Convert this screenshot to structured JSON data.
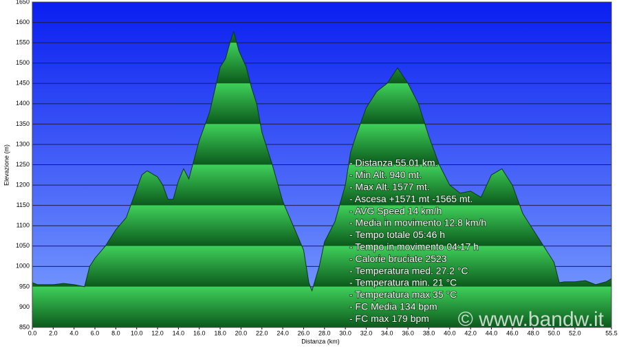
{
  "chart_data": {
    "type": "area",
    "xlabel": "Distanza  (km)",
    "ylabel": "Elevazione (m)",
    "x": [
      0,
      0.5,
      1,
      2,
      3,
      4,
      5,
      5.5,
      6,
      7,
      8,
      9,
      10,
      10.5,
      11,
      12,
      12.5,
      13,
      13.5,
      14,
      14.5,
      15,
      16,
      17,
      18,
      18.5,
      19,
      19.3,
      19.8,
      20.5,
      21,
      21.5,
      22,
      23,
      24,
      25,
      26,
      26.5,
      26.8,
      27.5,
      28,
      29,
      30,
      30.5,
      31,
      32,
      33,
      34,
      35,
      36,
      37,
      38,
      39,
      40,
      41,
      42,
      43,
      44,
      45,
      46,
      47,
      48,
      49,
      50,
      50.5,
      51,
      52,
      53,
      54,
      55,
      55.5
    ],
    "values": [
      960,
      955,
      955,
      955,
      958,
      955,
      950,
      1000,
      1020,
      1050,
      1090,
      1120,
      1190,
      1225,
      1235,
      1220,
      1200,
      1165,
      1165,
      1210,
      1240,
      1215,
      1310,
      1380,
      1490,
      1510,
      1555,
      1577,
      1530,
      1490,
      1440,
      1400,
      1330,
      1250,
      1160,
      1100,
      1040,
      960,
      940,
      1000,
      1060,
      1110,
      1200,
      1280,
      1320,
      1390,
      1430,
      1450,
      1488,
      1450,
      1400,
      1320,
      1250,
      1200,
      1180,
      1185,
      1170,
      1225,
      1240,
      1200,
      1130,
      1090,
      1050,
      1010,
      960,
      962,
      962,
      965,
      955,
      962,
      970
    ],
    "color": "#1aa83a",
    "xlim": [
      0,
      55.5
    ],
    "ylim": [
      850,
      1650
    ],
    "xticks": [
      {
        "value": 0,
        "label": "0.0"
      },
      {
        "value": 2,
        "label": "2.0"
      },
      {
        "value": 4,
        "label": "4.0"
      },
      {
        "value": 6,
        "label": "6.0"
      },
      {
        "value": 8,
        "label": "8.0"
      },
      {
        "value": 10,
        "label": "10.0"
      },
      {
        "value": 12,
        "label": "12.0"
      },
      {
        "value": 14,
        "label": "14.0"
      },
      {
        "value": 16,
        "label": "16.0"
      },
      {
        "value": 18,
        "label": "18.0"
      },
      {
        "value": 20,
        "label": "20.0"
      },
      {
        "value": 22,
        "label": "22.0"
      },
      {
        "value": 24,
        "label": "24.0"
      },
      {
        "value": 26,
        "label": "26.0"
      },
      {
        "value": 28,
        "label": "28.0"
      },
      {
        "value": 30,
        "label": "30.0"
      },
      {
        "value": 32,
        "label": "32.0"
      },
      {
        "value": 34,
        "label": "34.0"
      },
      {
        "value": 36,
        "label": "36.0"
      },
      {
        "value": 38,
        "label": "38.0"
      },
      {
        "value": 40,
        "label": "40.0"
      },
      {
        "value": 42,
        "label": "42.0"
      },
      {
        "value": 44,
        "label": "44.0"
      },
      {
        "value": 46,
        "label": "46.0"
      },
      {
        "value": 48,
        "label": "48.0"
      },
      {
        "value": 50,
        "label": "50.0"
      },
      {
        "value": 52,
        "label": "52.0"
      },
      55.5
    ],
    "yticks": [
      850,
      900,
      950,
      1000,
      1050,
      1100,
      1150,
      1200,
      1250,
      1300,
      1350,
      1400,
      1450,
      1500,
      1550,
      1600,
      1650
    ],
    "grid": true,
    "annotations": [
      "- Distanza 55.01 km.",
      "- Min Alt. 940 mt.",
      "- Max Alt. 1577 mt.",
      "- Ascesa +1571 mt -1565 mt.",
      "- AVG Speed 14 km/h",
      "- Media in movimento 12.8 km/h",
      "- Tempo totale 05:46 h",
      "- Tempo in movimento 04:17 h",
      "- Calorie bruciate 2523",
      "- Temperatura med. 27.2 °C",
      "- Temperatura min. 21 °C",
      "- Temperatura max 35 °C",
      "- FC Media 134 bpm",
      "- FC max 179 bpm"
    ],
    "watermark": "© www.bandw.it"
  }
}
